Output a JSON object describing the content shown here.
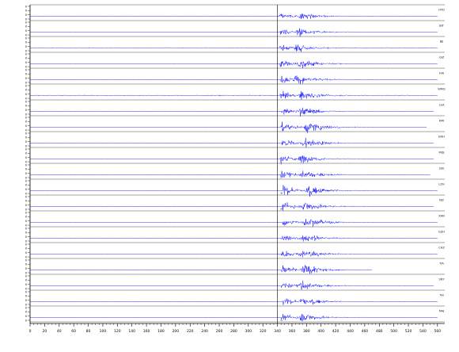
{
  "chart_data": {
    "type": "line",
    "title": "",
    "xlabel": "",
    "ylabel": "",
    "grid": false,
    "legend": "none",
    "trace_color": "#1a1aff",
    "axis_color": "#000000",
    "pick_color": "#000000",
    "xlim": [
      0,
      570
    ],
    "x_ticks": [
      0,
      20,
      40,
      60,
      80,
      100,
      120,
      140,
      160,
      180,
      200,
      220,
      240,
      260,
      280,
      300,
      320,
      340,
      360,
      380,
      400,
      420,
      440,
      460,
      480,
      500,
      520,
      540,
      560
    ],
    "pick_time": 340,
    "pick_labels": [
      "P",
      "S"
    ],
    "trace_count": 20,
    "traces": [
      {
        "name": "HYD",
        "onset": 342,
        "peak": 372,
        "amplitude": 0.45,
        "noise": 0.03,
        "end": 560
      },
      {
        "name": "BJT",
        "onset": 344,
        "peak": 368,
        "amplitude": 0.5,
        "noise": 0.04,
        "end": 560
      },
      {
        "name": "BJI",
        "onset": 343,
        "peak": 366,
        "amplitude": 0.45,
        "noise": 0.25,
        "end": 560
      },
      {
        "name": "QIZ",
        "onset": 344,
        "peak": 370,
        "amplitude": 0.55,
        "noise": 0.05,
        "end": 560
      },
      {
        "name": "HIA",
        "onset": 345,
        "peak": 364,
        "amplitude": 0.6,
        "noise": 0.04,
        "end": 560
      },
      {
        "name": "WMQ",
        "onset": 343,
        "peak": 372,
        "amplitude": 0.5,
        "noise": 0.3,
        "end": 560
      },
      {
        "name": "LSA",
        "onset": 346,
        "peak": 372,
        "amplitude": 0.5,
        "noise": 0.04,
        "end": 555
      },
      {
        "name": "KMI",
        "onset": 345,
        "peak": 380,
        "amplitude": 0.7,
        "noise": 0.04,
        "end": 545
      },
      {
        "name": "ENH",
        "onset": 346,
        "peak": 376,
        "amplitude": 0.6,
        "noise": 0.04,
        "end": 555
      },
      {
        "name": "MDJ",
        "onset": 344,
        "peak": 370,
        "amplitude": 0.55,
        "noise": 0.04,
        "end": 555
      },
      {
        "name": "SSE",
        "onset": 345,
        "peak": 374,
        "amplitude": 0.55,
        "noise": 0.04,
        "end": 550
      },
      {
        "name": "LZH",
        "onset": 348,
        "peak": 380,
        "amplitude": 0.65,
        "noise": 0.08,
        "end": 560
      },
      {
        "name": "NJ2",
        "onset": 347,
        "peak": 376,
        "amplitude": 0.6,
        "noise": 0.04,
        "end": 555
      },
      {
        "name": "XAN",
        "onset": 347,
        "peak": 378,
        "amplitude": 0.6,
        "noise": 0.06,
        "end": 560
      },
      {
        "name": "GZH",
        "onset": 346,
        "peak": 374,
        "amplitude": 0.55,
        "noise": 0.04,
        "end": 560
      },
      {
        "name": "CHZ",
        "onset": 345,
        "peak": 372,
        "amplitude": 0.55,
        "noise": 0.08,
        "end": 560
      },
      {
        "name": "TIA",
        "onset": 346,
        "peak": 376,
        "amplitude": 0.6,
        "noise": 0.04,
        "end": 470
      },
      {
        "name": "SNY",
        "onset": 345,
        "peak": 372,
        "amplitude": 0.55,
        "noise": 0.04,
        "end": 555
      },
      {
        "name": "TAI",
        "onset": 347,
        "peak": 374,
        "amplitude": 0.5,
        "noise": 0.03,
        "end": 560
      },
      {
        "name": "MAJ",
        "onset": 345,
        "peak": 372,
        "amplitude": 0.55,
        "noise": 0.03,
        "end": 560
      }
    ]
  }
}
